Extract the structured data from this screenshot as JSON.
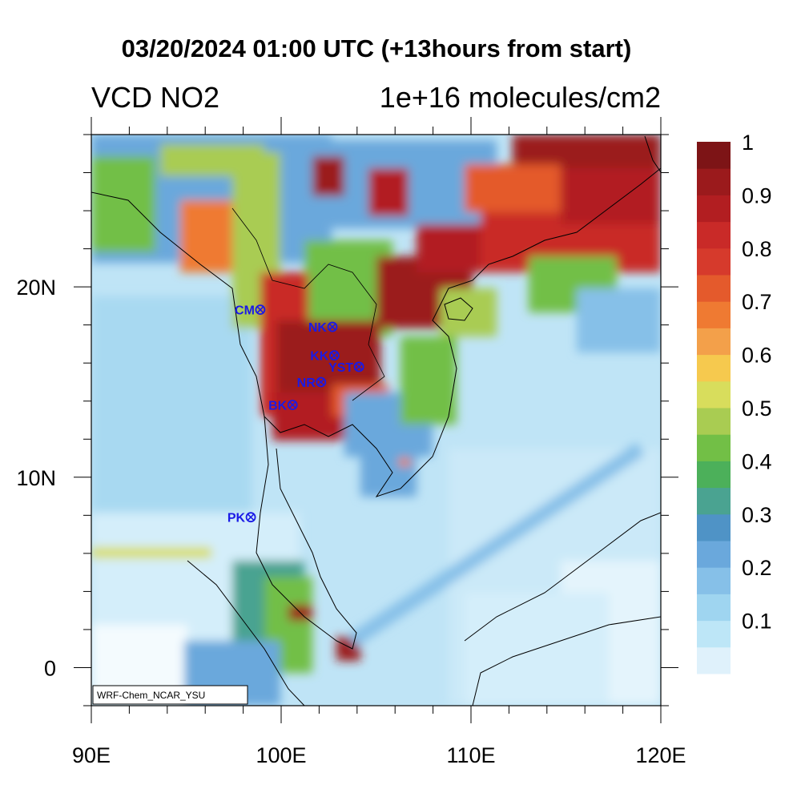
{
  "title": "03/20/2024 01:00 UTC (+13hours from start)",
  "subtitle_left": "VCD NO2",
  "subtitle_right": "1e+16 molecules/cm2",
  "credit": "WRF-Chem_NCAR_YSU",
  "map": {
    "lon_range": [
      90,
      120
    ],
    "lat_range": [
      -2,
      28
    ],
    "lon_ticks": [
      {
        "value": 90,
        "label": "90E"
      },
      {
        "value": 100,
        "label": "100E"
      },
      {
        "value": 110,
        "label": "110E"
      },
      {
        "value": 120,
        "label": "120E"
      }
    ],
    "lat_ticks": [
      {
        "value": 0,
        "label": "0"
      },
      {
        "value": 10,
        "label": "10N"
      },
      {
        "value": 20,
        "label": "20N"
      }
    ]
  },
  "colorbar": {
    "labels": [
      {
        "value": 1,
        "label": "1"
      },
      {
        "value": 0.9,
        "label": "0.9"
      },
      {
        "value": 0.8,
        "label": "0.8"
      },
      {
        "value": 0.7,
        "label": "0.7"
      },
      {
        "value": 0.6,
        "label": "0.6"
      },
      {
        "value": 0.5,
        "label": "0.5"
      },
      {
        "value": 0.4,
        "label": "0.4"
      },
      {
        "value": 0.3,
        "label": "0.3"
      },
      {
        "value": 0.2,
        "label": "0.2"
      },
      {
        "value": 0.1,
        "label": "0.1"
      }
    ],
    "colors": [
      "#dff1fb",
      "#bde6f7",
      "#9fd5f0",
      "#86c0e8",
      "#6aa8dc",
      "#4f93c6",
      "#4aa391",
      "#4cb05a",
      "#72bf46",
      "#a9cc52",
      "#d8dd5c",
      "#f6c94e",
      "#f3a04a",
      "#ef7a32",
      "#e45a2c",
      "#d63a2c",
      "#c92a28",
      "#b21e21",
      "#9b1a1c",
      "#7d1416"
    ]
  },
  "stations": [
    {
      "name": "CM",
      "lon": 98.9,
      "lat": 18.8
    },
    {
      "name": "NK",
      "lon": 102.7,
      "lat": 17.9
    },
    {
      "name": "KK",
      "lon": 102.8,
      "lat": 16.4
    },
    {
      "name": "YST",
      "lon": 104.1,
      "lat": 15.8
    },
    {
      "name": "NR",
      "lon": 102.1,
      "lat": 15.0
    },
    {
      "name": "BK",
      "lon": 100.6,
      "lat": 13.8
    },
    {
      "name": "PK",
      "lon": 98.4,
      "lat": 7.9
    }
  ]
}
